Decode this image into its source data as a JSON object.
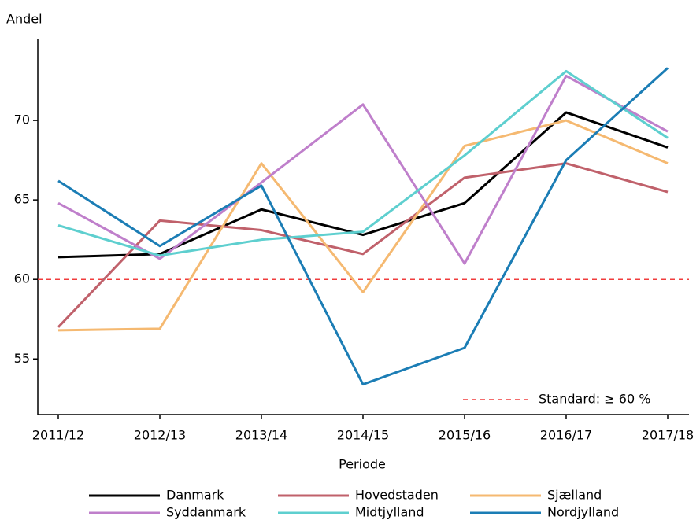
{
  "chart_data": {
    "type": "line",
    "y_label": "Andel",
    "x_label": "Periode",
    "categories": [
      "2011/12",
      "2012/13",
      "2013/14",
      "2014/15",
      "2015/16",
      "2016/17",
      "2017/18"
    ],
    "series": [
      {
        "name": "Danmark",
        "color": "#000000",
        "values": [
          61.4,
          61.6,
          64.4,
          62.8,
          64.8,
          70.5,
          68.3
        ]
      },
      {
        "name": "Hovedstaden",
        "color": "#c0616b",
        "values": [
          57.0,
          63.7,
          63.1,
          61.6,
          66.4,
          67.3,
          65.5
        ]
      },
      {
        "name": "Sjælland",
        "color": "#f5b971",
        "values": [
          56.8,
          56.9,
          67.3,
          59.2,
          68.4,
          70.0,
          67.3
        ]
      },
      {
        "name": "Syddanmark",
        "color": "#bf7fcb",
        "values": [
          64.8,
          61.3,
          66.1,
          71.0,
          61.0,
          72.8,
          69.3
        ]
      },
      {
        "name": "Midtjylland",
        "color": "#5ecfcf",
        "values": [
          63.4,
          61.5,
          62.5,
          63.0,
          67.8,
          73.1,
          68.9
        ]
      },
      {
        "name": "Nordjylland",
        "color": "#1b7db5",
        "values": [
          66.2,
          62.1,
          65.9,
          53.4,
          55.7,
          67.5,
          73.3
        ]
      }
    ],
    "reference": {
      "value": 60,
      "label": "Standard: ≥ 60 %",
      "color": "#f03c3c"
    },
    "ylim": [
      51.5,
      75.1
    ],
    "yticks": [
      55,
      60,
      65,
      70
    ],
    "legend": "bottom"
  }
}
